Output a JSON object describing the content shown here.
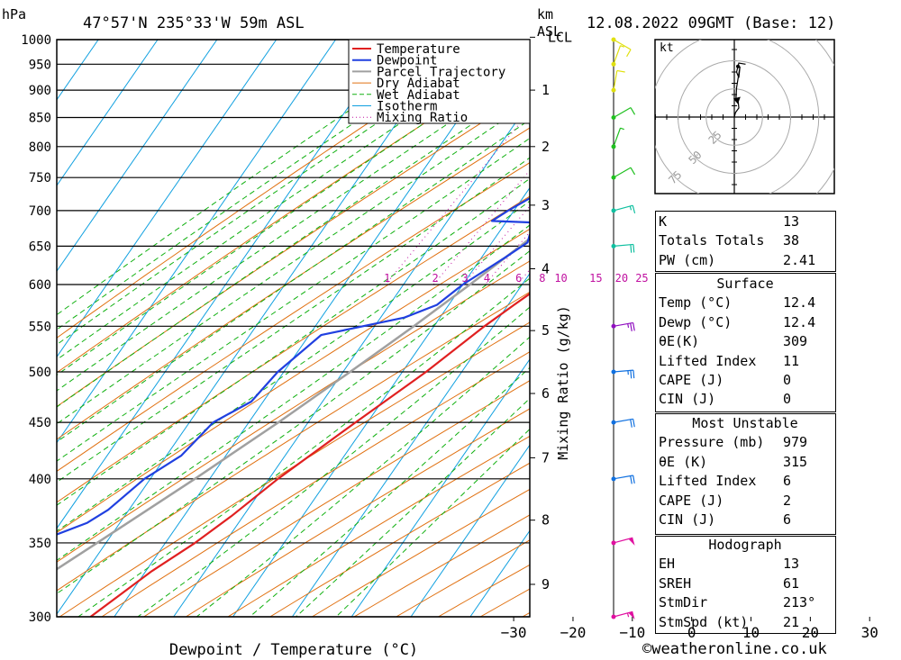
{
  "header": {
    "pressure_unit": "hPa",
    "location": "47°57'N 235°33'W 59m ASL",
    "km_unit": "km",
    "asl": "ASL",
    "datetime": "12.08.2022 09GMT (Base: 12)"
  },
  "chart_data": {
    "type": "line",
    "xlabel": "Dewpoint / Temperature (°C)",
    "ylabel": "hPa",
    "y2label": "km ASL",
    "mixing_ratio_axis_label": "Mixing Ratio (g/kg)",
    "xlim": [
      -40,
      40
    ],
    "ylim": [
      1000,
      300
    ],
    "y_scale": "log",
    "skew": true,
    "x_ticks": [
      -30,
      -20,
      -10,
      0,
      10,
      20,
      30,
      40
    ],
    "pressure_ticks": [
      300,
      350,
      400,
      450,
      500,
      550,
      600,
      650,
      700,
      750,
      800,
      850,
      900,
      950,
      1000
    ],
    "km_ticks": [
      {
        "label": "9",
        "p": 321
      },
      {
        "label": "8",
        "p": 367
      },
      {
        "label": "7",
        "p": 418
      },
      {
        "label": "6",
        "p": 478
      },
      {
        "label": "5",
        "p": 545
      },
      {
        "label": "4",
        "p": 620
      },
      {
        "label": "3",
        "p": 708
      },
      {
        "label": "2",
        "p": 800
      },
      {
        "label": "1",
        "p": 900
      },
      {
        "label": "LCL",
        "p": 1005
      }
    ],
    "mixing_ratio_labels": [
      "1",
      "2",
      "3",
      "4",
      "6",
      "8",
      "10",
      "15",
      "20",
      "25"
    ],
    "mixing_ratio_values": [
      1,
      2,
      3,
      4,
      6,
      8,
      10,
      15,
      20,
      25
    ],
    "legend": {
      "placement": "top-right",
      "entries": [
        "Temperature",
        "Dewpoint",
        "Parcel Trajectory",
        "Dry Adiabat",
        "Wet Adiabat",
        "Isotherm",
        "Mixing Ratio"
      ]
    },
    "colors": {
      "temperature": "#e02020",
      "dewpoint": "#2040e0",
      "parcel": "#a0a0a0",
      "dry_adiabat": "#e07010",
      "wet_adiabat": "#10b010",
      "isotherm": "#10a0e0",
      "mixing_ratio": "#c010a0"
    },
    "temperature": [
      {
        "p": 1000,
        "t": 15.5
      },
      {
        "p": 975,
        "t": 14.5
      },
      {
        "p": 950,
        "t": 14.0
      },
      {
        "p": 925,
        "t": 13.0
      },
      {
        "p": 900,
        "t": 12.0
      },
      {
        "p": 875,
        "t": 12.5
      },
      {
        "p": 850,
        "t": 12.4
      },
      {
        "p": 825,
        "t": 12.0
      },
      {
        "p": 810,
        "t": 12.5
      },
      {
        "p": 800,
        "t": 11.5
      },
      {
        "p": 775,
        "t": 9.5
      },
      {
        "p": 750,
        "t": 7.5
      },
      {
        "p": 725,
        "t": 7.0
      },
      {
        "p": 700,
        "t": 7.0
      },
      {
        "p": 675,
        "t": 6.0
      },
      {
        "p": 660,
        "t": 7.0
      },
      {
        "p": 640,
        "t": 7.0
      },
      {
        "p": 620,
        "t": 6.0
      },
      {
        "p": 600,
        "t": 3.5
      },
      {
        "p": 575,
        "t": 1.0
      },
      {
        "p": 550,
        "t": -1.5
      },
      {
        "p": 500,
        "t": -6.0
      },
      {
        "p": 450,
        "t": -12.0
      },
      {
        "p": 400,
        "t": -18.5
      },
      {
        "p": 370,
        "t": -22.0
      },
      {
        "p": 350,
        "t": -25.0
      },
      {
        "p": 330,
        "t": -29.0
      },
      {
        "p": 300,
        "t": -34.0
      }
    ],
    "dewpoint": [
      {
        "p": 1000,
        "t": 12.4
      },
      {
        "p": 975,
        "t": 12.5
      },
      {
        "p": 950,
        "t": 10.0
      },
      {
        "p": 925,
        "t": 9.0
      },
      {
        "p": 900,
        "t": 8.0
      },
      {
        "p": 875,
        "t": 6.5
      },
      {
        "p": 850,
        "t": 5.0
      },
      {
        "p": 825,
        "t": 4.0
      },
      {
        "p": 800,
        "t": 3.0
      },
      {
        "p": 775,
        "t": 1.5
      },
      {
        "p": 750,
        "t": 0.5
      },
      {
        "p": 740,
        "t": -0.5
      },
      {
        "p": 725,
        "t": -8.0
      },
      {
        "p": 700,
        "t": -11.0
      },
      {
        "p": 685,
        "t": -12.5
      },
      {
        "p": 682,
        "t": -2.5
      },
      {
        "p": 665,
        "t": -4.5
      },
      {
        "p": 655,
        "t": -4.0
      },
      {
        "p": 635,
        "t": -6.0
      },
      {
        "p": 600,
        "t": -10.0
      },
      {
        "p": 575,
        "t": -12.0
      },
      {
        "p": 560,
        "t": -16.0
      },
      {
        "p": 540,
        "t": -28.0
      },
      {
        "p": 500,
        "t": -31.0
      },
      {
        "p": 470,
        "t": -32.0
      },
      {
        "p": 450,
        "t": -36.0
      },
      {
        "p": 420,
        "t": -37.5
      },
      {
        "p": 400,
        "t": -41.0
      },
      {
        "p": 375,
        "t": -43.5
      },
      {
        "p": 365,
        "t": -45.5
      },
      {
        "p": 350,
        "t": -52.0
      },
      {
        "p": 330,
        "t": -52.0
      },
      {
        "p": 315,
        "t": -56.0
      },
      {
        "p": 300,
        "t": -59.0
      }
    ],
    "parcel": [
      {
        "p": 1000,
        "t": 12.4
      },
      {
        "p": 950,
        "t": 10.5
      },
      {
        "p": 900,
        "t": 8.6
      },
      {
        "p": 850,
        "t": 6.5
      },
      {
        "p": 800,
        "t": 4.2
      },
      {
        "p": 750,
        "t": 1.6
      },
      {
        "p": 700,
        "t": -1.4
      },
      {
        "p": 650,
        "t": -4.8
      },
      {
        "p": 600,
        "t": -8.8
      },
      {
        "p": 550,
        "t": -13.4
      },
      {
        "p": 500,
        "t": -18.8
      },
      {
        "p": 450,
        "t": -25.0
      },
      {
        "p": 400,
        "t": -32.5
      },
      {
        "p": 350,
        "t": -41.5
      },
      {
        "p": 300,
        "t": -52.0
      }
    ],
    "wind_profile": [
      {
        "p": 1000,
        "speed_kt": 12,
        "dir_deg": 300
      },
      {
        "p": 950,
        "speed_kt": 8,
        "dir_deg": 200
      },
      {
        "p": 900,
        "speed_kt": 10,
        "dir_deg": 190
      },
      {
        "p": 850,
        "speed_kt": 12,
        "dir_deg": 240
      },
      {
        "p": 800,
        "speed_kt": 8,
        "dir_deg": 200
      },
      {
        "p": 750,
        "speed_kt": 12,
        "dir_deg": 240
      },
      {
        "p": 700,
        "speed_kt": 15,
        "dir_deg": 255
      },
      {
        "p": 650,
        "speed_kt": 20,
        "dir_deg": 265
      },
      {
        "p": 550,
        "speed_kt": 25,
        "dir_deg": 260
      },
      {
        "p": 500,
        "speed_kt": 25,
        "dir_deg": 265
      },
      {
        "p": 450,
        "speed_kt": 20,
        "dir_deg": 260
      },
      {
        "p": 400,
        "speed_kt": 20,
        "dir_deg": 260
      },
      {
        "p": 350,
        "speed_kt": 50,
        "dir_deg": 255
      },
      {
        "p": 300,
        "speed_kt": 55,
        "dir_deg": 255
      }
    ],
    "hodograph": {
      "unit": "kt",
      "ring_labels": [
        "25",
        "50",
        "75"
      ],
      "rings_kt": [
        25,
        50,
        75,
        100
      ],
      "trace": [
        {
          "u": 0,
          "v": 0
        },
        {
          "u": 2,
          "v": 4
        },
        {
          "u": 5,
          "v": 6
        },
        {
          "u": 8,
          "v": 8
        },
        {
          "u": 7,
          "v": 13
        },
        {
          "u": 3,
          "v": 17
        },
        {
          "u": 4,
          "v": 26
        },
        {
          "u": 10,
          "v": 45
        },
        {
          "u": 8,
          "v": 35
        },
        {
          "u": 4,
          "v": 40
        },
        {
          "u": 8,
          "v": 48
        },
        {
          "u": 20,
          "v": 47
        }
      ],
      "storm_motion": {
        "u": 11,
        "v": 18
      }
    }
  },
  "indices": {
    "general": [
      {
        "label": "K",
        "value": "13"
      },
      {
        "label": "Totals Totals",
        "value": "38"
      },
      {
        "label": "PW (cm)",
        "value": "2.41"
      }
    ],
    "surface": {
      "title": "Surface",
      "rows": [
        {
          "label": "Temp (°C)",
          "value": "12.4"
        },
        {
          "label": "Dewp (°C)",
          "value": "12.4"
        },
        {
          "label": "θE(K)",
          "value": "309"
        },
        {
          "label": "Lifted Index",
          "value": "11"
        },
        {
          "label": "CAPE (J)",
          "value": "0"
        },
        {
          "label": "CIN (J)",
          "value": "0"
        }
      ]
    },
    "most_unstable": {
      "title": "Most Unstable",
      "rows": [
        {
          "label": "Pressure (mb)",
          "value": "979"
        },
        {
          "label": "θE (K)",
          "value": "315"
        },
        {
          "label": "Lifted Index",
          "value": "6"
        },
        {
          "label": "CAPE (J)",
          "value": "2"
        },
        {
          "label": "CIN (J)",
          "value": "6"
        }
      ]
    },
    "hodograph": {
      "title": "Hodograph",
      "rows": [
        {
          "label": "EH",
          "value": "13"
        },
        {
          "label": "SREH",
          "value": "61"
        },
        {
          "label": "StmDir",
          "value": "213°"
        },
        {
          "label": "StmSpd (kt)",
          "value": "21"
        }
      ]
    }
  },
  "footer": {
    "copyright": "©weatheronline.co.uk"
  }
}
